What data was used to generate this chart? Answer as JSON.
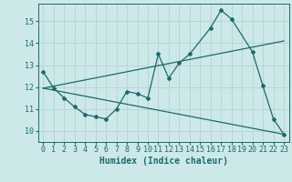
{
  "bg_color": "#cce8e8",
  "grid_color": "#b8d4d4",
  "line_color": "#1a6b6b",
  "line1_x": [
    0,
    1,
    2,
    3,
    4,
    5,
    6,
    7,
    8,
    9,
    10,
    11,
    12,
    13,
    14,
    16,
    17,
    18,
    20,
    21,
    22,
    23
  ],
  "line1_y": [
    12.7,
    11.95,
    11.5,
    11.1,
    10.75,
    10.65,
    10.55,
    11.0,
    11.8,
    11.7,
    11.5,
    13.5,
    12.4,
    13.1,
    13.5,
    14.7,
    15.5,
    15.1,
    13.6,
    12.05,
    10.55,
    9.85
  ],
  "line2_x": [
    0,
    23
  ],
  "line2_y": [
    11.95,
    14.1
  ],
  "line3_x": [
    0,
    23
  ],
  "line3_y": [
    11.95,
    9.85
  ],
  "xlim": [
    -0.5,
    23.5
  ],
  "ylim": [
    9.5,
    15.8
  ],
  "yticks": [
    10,
    11,
    12,
    13,
    14,
    15
  ],
  "xticks": [
    0,
    1,
    2,
    3,
    4,
    5,
    6,
    7,
    8,
    9,
    10,
    11,
    12,
    13,
    14,
    15,
    16,
    17,
    18,
    19,
    20,
    21,
    22,
    23
  ],
  "xlabel": "Humidex (Indice chaleur)",
  "xlabel_fontsize": 7,
  "tick_fontsize": 6
}
